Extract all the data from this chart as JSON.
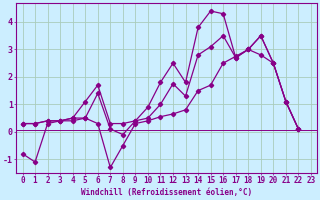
{
  "title": "",
  "xlabel": "Windchill (Refroidissement éolien,°C)",
  "ylabel": "",
  "bg_color": "#cceeff",
  "grid_color": "#aaccbb",
  "line_color": "#880088",
  "spine_color": "#880088",
  "xlim": [
    -0.5,
    23.5
  ],
  "ylim": [
    -1.5,
    4.7
  ],
  "yticks": [
    -1,
    0,
    1,
    2,
    3,
    4
  ],
  "xticks": [
    0,
    1,
    2,
    3,
    4,
    5,
    6,
    7,
    8,
    9,
    10,
    11,
    12,
    13,
    14,
    15,
    16,
    17,
    18,
    19,
    20,
    21,
    22,
    23
  ],
  "hline_y": 0.08,
  "series": [
    [
      0.3,
      0.3,
      0.4,
      0.4,
      0.5,
      1.1,
      1.7,
      0.3,
      0.3,
      0.4,
      0.9,
      1.8,
      2.5,
      1.8,
      3.8,
      4.4,
      4.3,
      2.7,
      3.0,
      3.5,
      2.5,
      1.1,
      0.1
    ],
    [
      -0.8,
      -1.1,
      0.3,
      0.4,
      0.4,
      0.5,
      0.3,
      -1.3,
      -0.5,
      0.3,
      0.4,
      0.55,
      0.65,
      0.8,
      1.5,
      1.7,
      2.5,
      2.75,
      3.0,
      2.8,
      2.5,
      1.1,
      0.1
    ],
    [
      0.3,
      0.3,
      0.4,
      0.4,
      0.5,
      0.5,
      1.4,
      0.1,
      -0.1,
      0.4,
      0.5,
      1.0,
      1.75,
      1.3,
      2.8,
      3.1,
      3.5,
      2.7,
      3.0,
      3.5,
      2.5,
      1.1,
      0.1
    ]
  ],
  "tick_fontsize": 5.5,
  "xlabel_fontsize": 5.5,
  "marker_size": 2.2,
  "linewidth": 0.9
}
